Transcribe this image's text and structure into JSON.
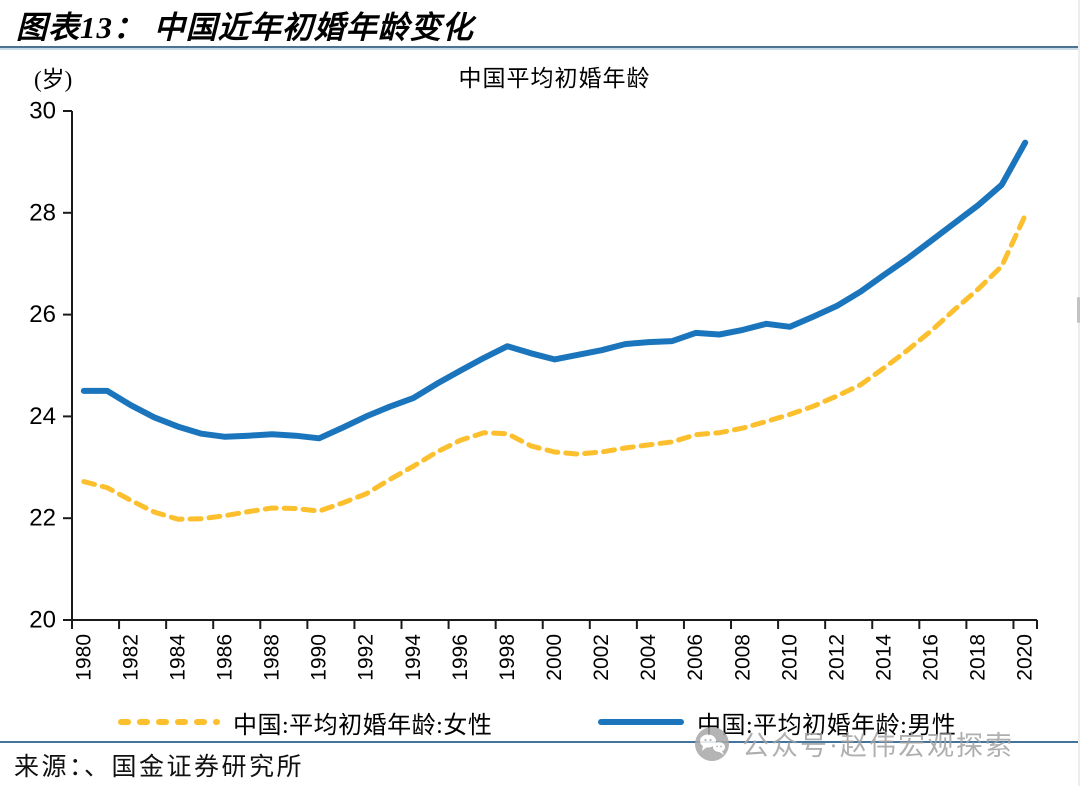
{
  "page": {
    "title": "图表13： 中国近年初婚年龄变化"
  },
  "watermark": {
    "text": "公众号·赵伟宏观探索",
    "icon": "wechat-bubbles-icon",
    "color": "#a2a2a2"
  },
  "footer": {
    "source": "来源：、国金证券研究所"
  },
  "colors": {
    "male_line": "#1b75bc",
    "female_line": "#fcbf2d",
    "axis": "#1a1a1a",
    "header_rule": "#4d7390",
    "bottom_rule": "#44749c"
  },
  "chart_data": {
    "type": "line",
    "title": "中国平均初婚年龄",
    "unit_label": "(岁)",
    "xlabel": "",
    "ylabel": "岁",
    "ylim": [
      20,
      30
    ],
    "y_ticks": [
      20,
      22,
      24,
      26,
      28,
      30
    ],
    "grid": false,
    "legend_position": "bottom",
    "x": [
      1980,
      1981,
      1982,
      1983,
      1984,
      1985,
      1986,
      1987,
      1988,
      1989,
      1990,
      1991,
      1992,
      1993,
      1994,
      1995,
      1996,
      1997,
      1998,
      1999,
      2000,
      2001,
      2002,
      2003,
      2004,
      2005,
      2006,
      2007,
      2008,
      2009,
      2010,
      2011,
      2012,
      2013,
      2014,
      2015,
      2016,
      2017,
      2018,
      2019,
      2020
    ],
    "x_tick_labels": [
      "1980",
      "1982",
      "1984",
      "1986",
      "1988",
      "1990",
      "1992",
      "1994",
      "1996",
      "1998",
      "2000",
      "2002",
      "2004",
      "2006",
      "2008",
      "2010",
      "2012",
      "2014",
      "2016",
      "2018",
      "2020"
    ],
    "series": [
      {
        "name": "中国:平均初婚年龄:女性",
        "style": "dashed",
        "color": "#fcbf2d",
        "values": [
          22.72,
          22.6,
          22.35,
          22.12,
          21.98,
          21.99,
          22.05,
          22.13,
          22.2,
          22.19,
          22.14,
          22.3,
          22.48,
          22.76,
          23.02,
          23.3,
          23.53,
          23.68,
          23.66,
          23.42,
          23.3,
          23.26,
          23.3,
          23.38,
          23.44,
          23.5,
          23.64,
          23.68,
          23.77,
          23.9,
          24.04,
          24.2,
          24.4,
          24.62,
          24.95,
          25.3,
          25.68,
          26.1,
          26.5,
          26.95,
          27.95
        ]
      },
      {
        "name": "中国:平均初婚年龄:男性",
        "style": "solid",
        "color": "#1b75bc",
        "values": [
          24.5,
          24.5,
          24.22,
          23.98,
          23.8,
          23.66,
          23.6,
          23.62,
          23.65,
          23.62,
          23.57,
          23.78,
          24.0,
          24.19,
          24.36,
          24.64,
          24.9,
          25.15,
          25.38,
          25.24,
          25.12,
          25.21,
          25.3,
          25.42,
          25.46,
          25.48,
          25.64,
          25.61,
          25.7,
          25.82,
          25.76,
          25.96,
          26.17,
          26.45,
          26.78,
          27.1,
          27.45,
          27.8,
          28.15,
          28.55,
          29.38
        ]
      }
    ]
  }
}
